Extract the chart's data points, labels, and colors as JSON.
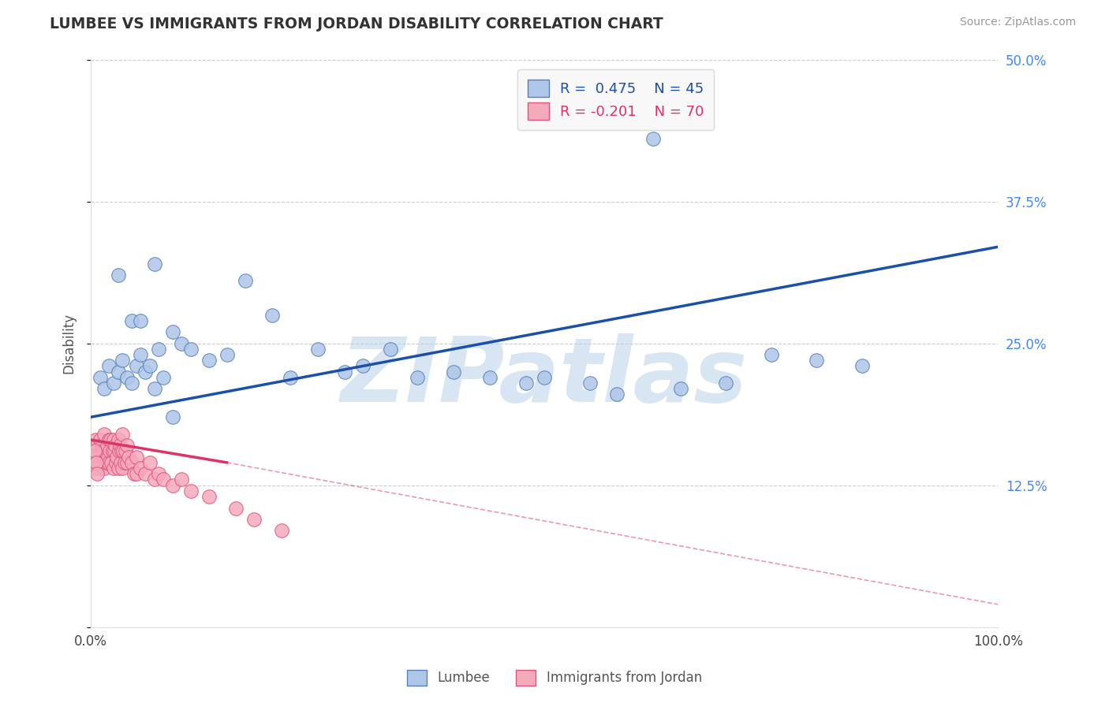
{
  "title": "LUMBEE VS IMMIGRANTS FROM JORDAN DISABILITY CORRELATION CHART",
  "source": "Source: ZipAtlas.com",
  "ylabel": "Disability",
  "xlim": [
    0,
    100
  ],
  "ylim": [
    0,
    50
  ],
  "yticks": [
    0,
    12.5,
    25.0,
    37.5,
    50.0
  ],
  "xticks": [
    0,
    100
  ],
  "background_color": "#ffffff",
  "grid_color": "#cccccc",
  "watermark_text": "ZIPatlas",
  "watermark_color": "#b8d0e8",
  "lumbee_face_color": "#aec6e8",
  "lumbee_edge_color": "#5580bb",
  "jordan_face_color": "#f4aabb",
  "jordan_edge_color": "#e05580",
  "lumbee_R": 0.475,
  "lumbee_N": 45,
  "jordan_R": -0.201,
  "jordan_N": 70,
  "lumbee_line_color": "#1a4faa",
  "jordan_line_color": "#dd3366",
  "legend_face_color": "#f8f8f8",
  "lumbee_x": [
    1.0,
    1.5,
    2.0,
    2.5,
    3.0,
    3.5,
    4.0,
    4.5,
    5.0,
    5.5,
    6.0,
    6.5,
    7.0,
    7.5,
    8.0,
    9.0,
    10.0,
    11.0,
    13.0,
    15.0,
    17.0,
    20.0,
    22.0,
    25.0,
    28.0,
    30.0,
    33.0,
    36.0,
    40.0,
    44.0,
    48.0,
    50.0,
    55.0,
    58.0,
    62.0,
    65.0,
    70.0,
    75.0,
    80.0,
    85.0,
    3.0,
    4.5,
    5.5,
    7.0,
    9.0
  ],
  "lumbee_y": [
    22.0,
    21.0,
    23.0,
    21.5,
    22.5,
    23.5,
    22.0,
    21.5,
    23.0,
    24.0,
    22.5,
    23.0,
    21.0,
    24.5,
    22.0,
    26.0,
    25.0,
    24.5,
    23.5,
    24.0,
    30.5,
    27.5,
    22.0,
    24.5,
    22.5,
    23.0,
    24.5,
    22.0,
    22.5,
    22.0,
    21.5,
    22.0,
    21.5,
    20.5,
    43.0,
    21.0,
    21.5,
    24.0,
    23.5,
    23.0,
    31.0,
    27.0,
    27.0,
    32.0,
    18.5
  ],
  "jordan_x": [
    0.2,
    0.3,
    0.4,
    0.5,
    0.5,
    0.6,
    0.7,
    0.8,
    0.9,
    1.0,
    1.0,
    1.0,
    1.1,
    1.2,
    1.3,
    1.4,
    1.5,
    1.5,
    1.6,
    1.7,
    1.8,
    1.9,
    2.0,
    2.0,
    2.1,
    2.2,
    2.3,
    2.4,
    2.5,
    2.5,
    2.6,
    2.7,
    2.8,
    2.9,
    3.0,
    3.0,
    3.1,
    3.2,
    3.3,
    3.4,
    3.5,
    3.5,
    3.6,
    3.7,
    3.8,
    4.0,
    4.0,
    4.2,
    4.5,
    4.8,
    5.0,
    5.0,
    5.5,
    6.0,
    6.5,
    7.0,
    7.5,
    8.0,
    9.0,
    10.0,
    11.0,
    13.0,
    16.0,
    18.0,
    21.0,
    0.3,
    0.4,
    0.5,
    0.6,
    0.7
  ],
  "jordan_y": [
    15.5,
    16.0,
    15.0,
    16.5,
    14.5,
    15.5,
    16.0,
    14.5,
    15.0,
    16.5,
    15.0,
    14.0,
    15.5,
    16.0,
    14.5,
    15.5,
    17.0,
    14.0,
    15.5,
    14.5,
    16.0,
    15.0,
    16.5,
    14.5,
    15.5,
    16.5,
    14.5,
    15.5,
    16.5,
    14.0,
    15.5,
    16.0,
    14.5,
    15.0,
    16.5,
    14.0,
    15.5,
    16.0,
    14.5,
    15.5,
    17.0,
    14.0,
    15.5,
    14.5,
    15.5,
    16.0,
    14.5,
    15.0,
    14.5,
    13.5,
    15.0,
    13.5,
    14.0,
    13.5,
    14.5,
    13.0,
    13.5,
    13.0,
    12.5,
    13.0,
    12.0,
    11.5,
    10.5,
    9.5,
    8.5,
    15.0,
    15.5,
    14.0,
    14.5,
    13.5
  ],
  "lumbee_line_x0": 0,
  "lumbee_line_x1": 100,
  "lumbee_line_y0": 18.5,
  "lumbee_line_y1": 33.5,
  "jordan_solid_x0": 0,
  "jordan_solid_x1": 15,
  "jordan_solid_y0": 16.5,
  "jordan_solid_y1": 14.5,
  "jordan_dash_x0": 15,
  "jordan_dash_x1": 100,
  "jordan_dash_y0": 14.5,
  "jordan_dash_y1": 2.0
}
